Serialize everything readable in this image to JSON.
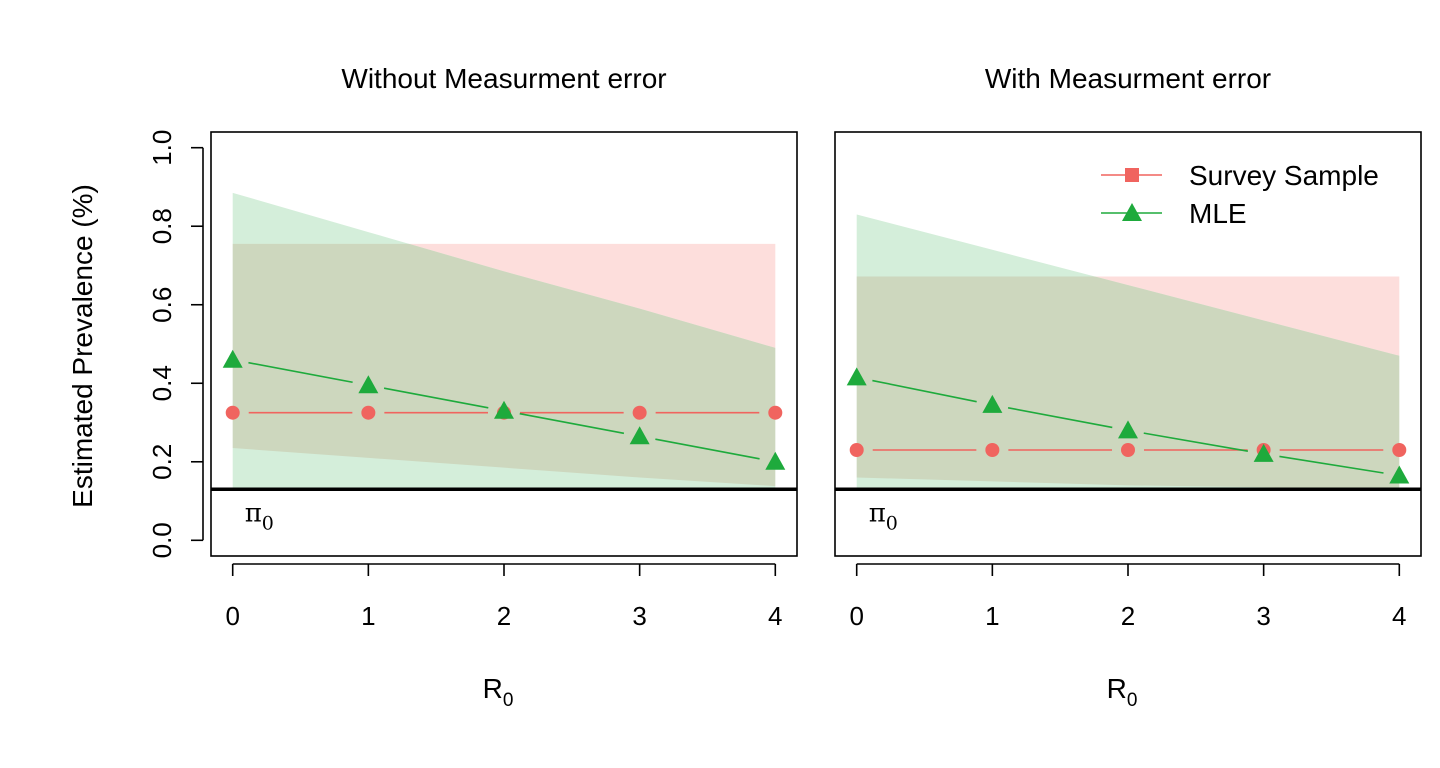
{
  "figure": {
    "ylabel": "Estimated Prevalence (%)",
    "reference_label": "π",
    "reference_subscript": "0",
    "colors": {
      "survey": "#F0645F",
      "mle": "#1EAA3C",
      "survey_band": "#FDDEDC",
      "mle_band": "#D4EEDA",
      "overlap_band": "#CDD7BE",
      "reference": "#000000"
    }
  },
  "chart_data": [
    {
      "type": "line",
      "title": "Without Measurment error",
      "xlabel": "R",
      "xlabel_subscript": "0",
      "ylabel": "Estimated Prevalence (%)",
      "x": [
        0,
        1,
        2,
        3,
        4
      ],
      "x_ticks": [
        "0",
        "1",
        "2",
        "3",
        "4"
      ],
      "y_ticks": [
        "0.0",
        "0.2",
        "0.4",
        "0.6",
        "0.8",
        "1.0"
      ],
      "xlim": [
        -0.16,
        4.16
      ],
      "ylim": [
        -0.04,
        1.04
      ],
      "reference_line": 0.13,
      "series": [
        {
          "key": "survey",
          "name": "Survey Sample",
          "marker": "circle",
          "values": [
            0.325,
            0.325,
            0.325,
            0.325,
            0.325
          ],
          "band_lower": [
            0.235,
            0.21,
            0.185,
            0.16,
            0.138
          ],
          "band_upper": [
            0.755,
            0.755,
            0.755,
            0.755,
            0.755
          ]
        },
        {
          "key": "mle",
          "name": "MLE",
          "marker": "triangle",
          "values": [
            0.46,
            0.395,
            0.33,
            0.265,
            0.2
          ],
          "band_lower": [
            0.13,
            0.13,
            0.13,
            0.13,
            0.13
          ],
          "band_upper": [
            0.885,
            0.785,
            0.685,
            0.59,
            0.49
          ]
        }
      ],
      "grid": false,
      "legend": null
    },
    {
      "type": "line",
      "title": "With Measurment error",
      "xlabel": "R",
      "xlabel_subscript": "0",
      "x": [
        0,
        1,
        2,
        3,
        4
      ],
      "x_ticks": [
        "0",
        "1",
        "2",
        "3",
        "4"
      ],
      "y_ticks": [],
      "xlim": [
        -0.16,
        4.16
      ],
      "ylim": [
        -0.04,
        1.04
      ],
      "reference_line": 0.13,
      "series": [
        {
          "key": "survey",
          "name": "Survey Sample",
          "marker": "circle",
          "values": [
            0.23,
            0.23,
            0.23,
            0.23,
            0.23
          ],
          "band_lower": [
            0.16,
            0.15,
            0.14,
            0.135,
            0.13
          ],
          "band_upper": [
            0.672,
            0.672,
            0.672,
            0.672,
            0.672
          ]
        },
        {
          "key": "mle",
          "name": "MLE",
          "marker": "triangle",
          "values": [
            0.415,
            0.345,
            0.28,
            0.22,
            0.165
          ],
          "band_lower": [
            0.13,
            0.13,
            0.13,
            0.13,
            0.13
          ],
          "band_upper": [
            0.83,
            0.74,
            0.65,
            0.56,
            0.47
          ]
        }
      ],
      "grid": false,
      "legend": {
        "placement": "top-right",
        "entries": [
          {
            "label": "Survey Sample",
            "marker": "square",
            "color_key": "survey"
          },
          {
            "label": "MLE",
            "marker": "triangle",
            "color_key": "mle"
          }
        ]
      }
    }
  ]
}
